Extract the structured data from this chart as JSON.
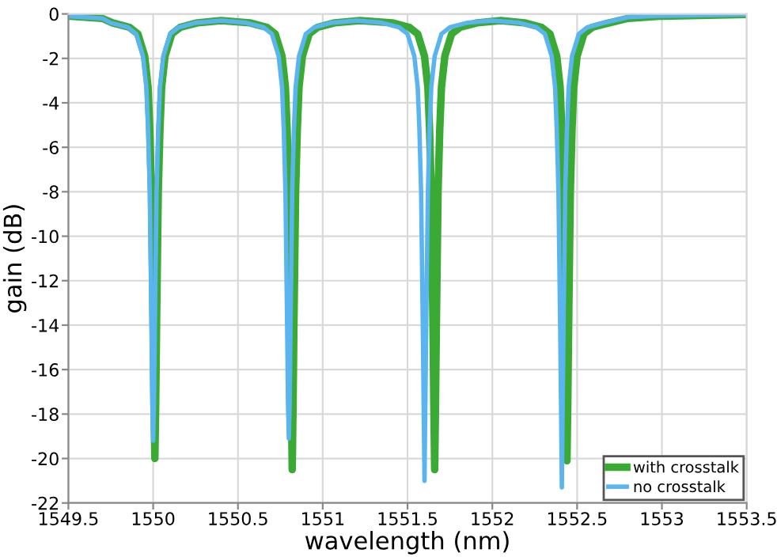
{
  "chart_data": {
    "type": "line",
    "xlabel": "wavelength (nm)",
    "ylabel": "gain (dB)",
    "xlim": [
      1549.5,
      1553.5
    ],
    "xticks": [
      1549.5,
      1550,
      1550.5,
      1551,
      1551.5,
      1552,
      1552.5,
      1553,
      1553.5
    ],
    "ylim": [
      -22,
      0
    ],
    "yticks": [
      0,
      -2,
      -4,
      -6,
      -8,
      -10,
      -12,
      -14,
      -16,
      -18,
      -20,
      -22
    ],
    "grid": true,
    "legend": "bottom right",
    "marker": "none",
    "line_style": "solid",
    "series": [
      {
        "name": "with crosstalk",
        "color": "#3aaa35",
        "x": [
          1549.5,
          1549.7,
          1549.76,
          1549.86,
          1549.91,
          1549.95,
          1549.97,
          1549.98,
          1549.99,
          1550.0,
          1550.005,
          1550.01,
          1550.015,
          1550.02,
          1550.03,
          1550.04,
          1550.05,
          1550.07,
          1550.11,
          1550.16,
          1550.26,
          1550.4,
          1550.57,
          1550.67,
          1550.72,
          1550.76,
          1550.78,
          1550.79,
          1550.8,
          1550.81,
          1550.815,
          1550.82,
          1550.825,
          1550.83,
          1550.84,
          1550.85,
          1550.86,
          1550.88,
          1550.92,
          1550.97,
          1551.07,
          1551.22,
          1551.41,
          1551.51,
          1551.56,
          1551.6,
          1551.62,
          1551.63,
          1551.64,
          1551.65,
          1551.655,
          1551.66,
          1551.665,
          1551.67,
          1551.68,
          1551.69,
          1551.7,
          1551.72,
          1551.76,
          1551.81,
          1551.91,
          1552.05,
          1552.19,
          1552.29,
          1552.34,
          1552.38,
          1552.4,
          1552.41,
          1552.42,
          1552.43,
          1552.435,
          1552.44,
          1552.445,
          1552.45,
          1552.46,
          1552.47,
          1552.48,
          1552.5,
          1552.54,
          1552.59,
          1552.69,
          1552.8,
          1553.0,
          1553.5
        ],
        "values": [
          -0.1,
          -0.2,
          -0.4,
          -0.6,
          -0.9,
          -1.9,
          -3.3,
          -5.2,
          -8,
          -14,
          -17.5,
          -20.0,
          -17.5,
          -14,
          -8,
          -5.2,
          -3.3,
          -1.9,
          -0.9,
          -0.6,
          -0.4,
          -0.3,
          -0.4,
          -0.6,
          -0.9,
          -1.9,
          -3.3,
          -5.2,
          -8,
          -14,
          -17.5,
          -20.5,
          -17.5,
          -14,
          -8,
          -5.2,
          -3.3,
          -1.9,
          -0.9,
          -0.6,
          -0.4,
          -0.3,
          -0.4,
          -0.6,
          -0.9,
          -1.9,
          -3.3,
          -5.2,
          -8,
          -14,
          -17.5,
          -20.5,
          -17.5,
          -14,
          -8,
          -5.2,
          -3.3,
          -1.9,
          -0.9,
          -0.6,
          -0.4,
          -0.3,
          -0.4,
          -0.6,
          -0.9,
          -1.9,
          -3.3,
          -5.2,
          -8,
          -14,
          -17.5,
          -20.1,
          -17.5,
          -14,
          -8,
          -5.2,
          -3.3,
          -1.9,
          -0.9,
          -0.6,
          -0.4,
          -0.2,
          -0.1,
          -0.02
        ]
      },
      {
        "name": "no crosstalk",
        "color": "#5ab4f0",
        "x": [
          1549.5,
          1549.7,
          1549.75,
          1549.85,
          1549.9,
          1549.94,
          1549.96,
          1549.97,
          1549.98,
          1549.99,
          1549.995,
          1550.0,
          1550.005,
          1550.01,
          1550.02,
          1550.03,
          1550.04,
          1550.06,
          1550.1,
          1550.15,
          1550.25,
          1550.4,
          1550.55,
          1550.65,
          1550.7,
          1550.74,
          1550.76,
          1550.77,
          1550.78,
          1550.79,
          1550.795,
          1550.8,
          1550.805,
          1550.81,
          1550.82,
          1550.83,
          1550.84,
          1550.86,
          1550.9,
          1550.95,
          1551.05,
          1551.2,
          1551.35,
          1551.45,
          1551.5,
          1551.54,
          1551.56,
          1551.57,
          1551.58,
          1551.59,
          1551.595,
          1551.6,
          1551.605,
          1551.61,
          1551.62,
          1551.63,
          1551.64,
          1551.66,
          1551.7,
          1551.75,
          1551.85,
          1552.0,
          1552.16,
          1552.26,
          1552.31,
          1552.35,
          1552.37,
          1552.38,
          1552.39,
          1552.4,
          1552.405,
          1552.41,
          1552.415,
          1552.42,
          1552.43,
          1552.44,
          1552.45,
          1552.47,
          1552.51,
          1552.56,
          1552.66,
          1552.8,
          1553.0,
          1553.5
        ],
        "values": [
          -0.1,
          -0.2,
          -0.4,
          -0.6,
          -0.9,
          -1.9,
          -3.3,
          -5.2,
          -8,
          -14,
          -17.5,
          -19.2,
          -17.5,
          -14,
          -8,
          -5.2,
          -3.3,
          -1.9,
          -0.9,
          -0.6,
          -0.4,
          -0.3,
          -0.4,
          -0.6,
          -0.9,
          -1.9,
          -3.3,
          -5.2,
          -8,
          -14,
          -17.5,
          -19.1,
          -17.5,
          -14,
          -8,
          -5.2,
          -3.3,
          -1.9,
          -0.9,
          -0.6,
          -0.4,
          -0.3,
          -0.4,
          -0.6,
          -0.9,
          -1.9,
          -3.3,
          -5.2,
          -8,
          -14,
          -17.5,
          -21.0,
          -17.5,
          -14,
          -8,
          -5.2,
          -3.3,
          -1.9,
          -0.9,
          -0.6,
          -0.4,
          -0.3,
          -0.4,
          -0.6,
          -0.9,
          -1.9,
          -3.3,
          -5.2,
          -8,
          -14,
          -17.5,
          -21.3,
          -17.5,
          -14,
          -8,
          -5.2,
          -3.3,
          -1.9,
          -0.9,
          -0.6,
          -0.4,
          -0.15,
          -0.08,
          -0.02
        ]
      }
    ]
  }
}
